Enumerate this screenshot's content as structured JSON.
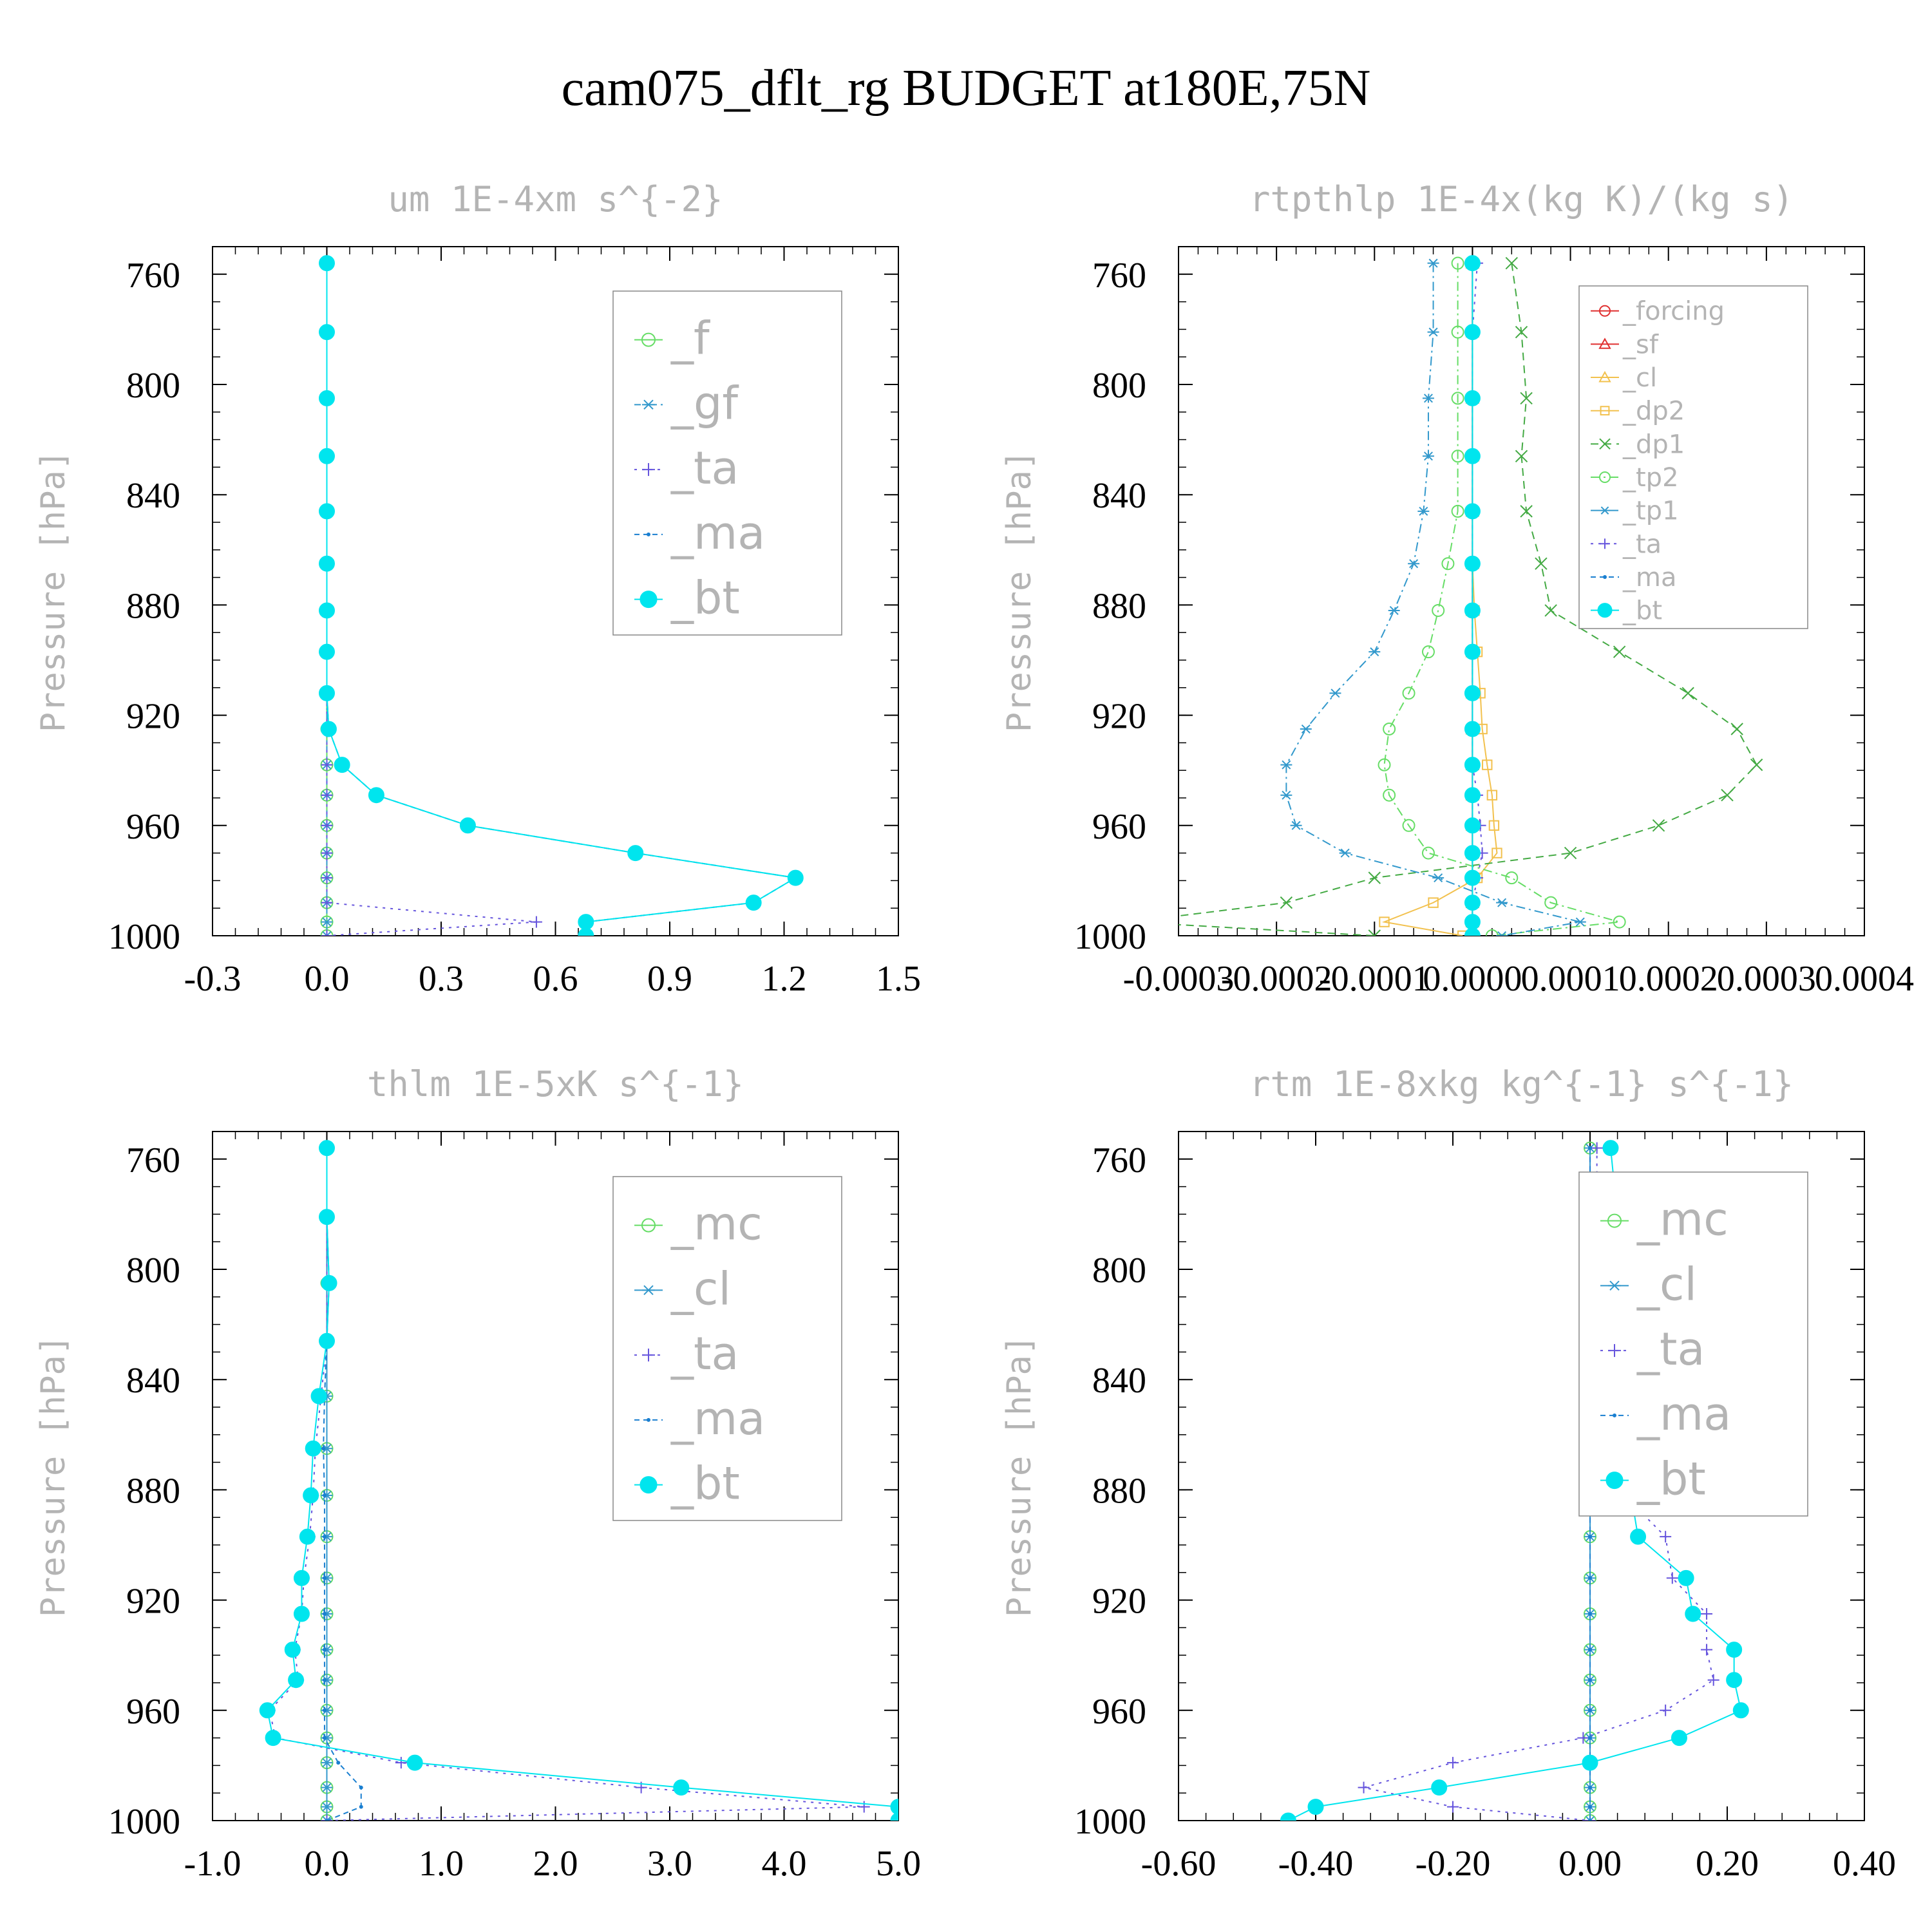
{
  "title": "cam075_dflt_rg  BUDGET at180E,75N",
  "colors": {
    "axis": "#000000",
    "grey_text": "#b4b4b4",
    "_f": "#66dd66",
    "_gf": "#3399cc",
    "_ta": "#6655dd",
    "_ma": "#1a7fd0",
    "_bt": "#00e5ee",
    "_forcing": "#e03030",
    "_sf": "#e03030",
    "_cl": "#f2c14e",
    "_dp2": "#f2c14e",
    "_dp1": "#44aa44",
    "_tp2": "#66dd66",
    "_tp1": "#3399cc",
    "_mc": "#66dd66",
    "_cl_blue": "#3399cc"
  },
  "chart_data": [
    {
      "type": "line",
      "title": "um  1E-4xm s^{-2}",
      "ylabel": "Pressure [hPa]",
      "xlabel": "",
      "xlim": [
        -0.3,
        1.5
      ],
      "ylim": [
        1000,
        750
      ],
      "xticks": [
        "-0.3",
        "0.0",
        "0.3",
        "0.6",
        "0.9",
        "1.2",
        "1.5"
      ],
      "yticks": [
        "760",
        "800",
        "840",
        "880",
        "920",
        "960",
        "1000"
      ],
      "legend": "top-right",
      "y": [
        756,
        781,
        805,
        826,
        846,
        865,
        882,
        897,
        912,
        925,
        938,
        949,
        960,
        970,
        979,
        988,
        995,
        1000
      ],
      "series": [
        {
          "name": "_f",
          "values": [
            0,
            0,
            0,
            0,
            0,
            0,
            0,
            0,
            0,
            0,
            0,
            0,
            0,
            0,
            0,
            0,
            0,
            0
          ]
        },
        {
          "name": "_gf",
          "values": [
            0,
            0,
            0,
            0,
            0,
            0,
            0,
            0,
            0,
            0,
            0,
            0,
            0,
            0,
            0,
            0,
            0,
            0
          ]
        },
        {
          "name": "_ta",
          "values": [
            0,
            0,
            0,
            0,
            0,
            0,
            0,
            0,
            0,
            0,
            0,
            0,
            0,
            0,
            0,
            0,
            0.55,
            0
          ]
        },
        {
          "name": "_ma",
          "values": [
            0,
            0,
            0,
            0,
            0,
            0,
            0,
            0,
            0,
            0.005,
            0.04,
            0.13,
            0.37,
            0.81,
            1.23,
            1.12,
            0.68,
            0.68
          ]
        },
        {
          "name": "_bt",
          "values": [
            0,
            0,
            0,
            0,
            0,
            0,
            0,
            0,
            0,
            0.005,
            0.04,
            0.13,
            0.37,
            0.81,
            1.23,
            1.12,
            0.68,
            0.68
          ]
        }
      ]
    },
    {
      "type": "line",
      "title": "rtpthlp  1E-4x(kg K)/(kg s)",
      "ylabel": "Pressure [hPa]",
      "xlabel": "",
      "xlim": [
        -0.0003,
        0.0004
      ],
      "ylim": [
        1000,
        750
      ],
      "xticks": [
        "-0.0003",
        "-0.0002",
        "-0.0001",
        "0.0000",
        "0.0001",
        "0.0002",
        "0.0003",
        "0.0004"
      ],
      "yticks": [
        "760",
        "800",
        "840",
        "880",
        "920",
        "960",
        "1000"
      ],
      "legend": "top-right",
      "y": [
        756,
        781,
        805,
        826,
        846,
        865,
        882,
        897,
        912,
        925,
        938,
        949,
        960,
        970,
        979,
        988,
        995,
        1000
      ],
      "series": [
        {
          "name": "_forcing",
          "values": [
            0,
            0,
            0,
            0,
            0,
            0,
            0,
            0,
            0,
            0,
            0,
            0,
            0,
            0,
            0,
            0,
            0,
            0
          ]
        },
        {
          "name": "_sf",
          "values": [
            0,
            0,
            0,
            0,
            0,
            0,
            0,
            0,
            0,
            0,
            0,
            0,
            0,
            0,
            0,
            0,
            0,
            0
          ]
        },
        {
          "name": "_cl",
          "values": [
            0,
            0,
            0,
            0,
            0,
            0,
            0,
            0,
            0,
            0,
            0,
            0,
            0,
            0,
            0,
            0,
            0,
            0
          ]
        },
        {
          "name": "_dp2",
          "values": [
            0,
            0,
            0,
            0,
            0,
            0,
            2e-06,
            5e-06,
            8e-06,
            1e-05,
            1.5e-05,
            2e-05,
            2.2e-05,
            2.5e-05,
            5e-06,
            -4e-05,
            -9e-05,
            -1e-05
          ]
        },
        {
          "name": "_dp1",
          "values": [
            4e-05,
            5e-05,
            5.5e-05,
            5e-05,
            5.5e-05,
            7e-05,
            8e-05,
            0.00015,
            0.00022,
            0.00027,
            0.00029,
            0.00026,
            0.00019,
            0.0001,
            -0.0001,
            -0.00019,
            -0.00035,
            -0.0001
          ]
        },
        {
          "name": "_tp2",
          "values": [
            -1.5e-05,
            -1.5e-05,
            -1.5e-05,
            -1.5e-05,
            -1.5e-05,
            -2.5e-05,
            -3.5e-05,
            -4.5e-05,
            -6.5e-05,
            -8.5e-05,
            -9e-05,
            -8.5e-05,
            -6.5e-05,
            -4.5e-05,
            4e-05,
            8e-05,
            0.00015,
            2e-05
          ]
        },
        {
          "name": "_tp1",
          "values": [
            -4e-05,
            -4e-05,
            -4.5e-05,
            -4.5e-05,
            -5e-05,
            -6e-05,
            -8e-05,
            -0.0001,
            -0.00014,
            -0.00017,
            -0.00019,
            -0.00019,
            -0.00018,
            -0.00013,
            -3.5e-05,
            3e-05,
            0.00011,
            3e-05
          ]
        },
        {
          "name": "_ta",
          "values": [
            5e-06,
            0,
            0,
            0,
            0,
            0,
            0,
            0,
            0,
            0,
            0,
            5e-06,
            8e-06,
            1e-05,
            5e-06,
            0,
            0,
            0
          ]
        },
        {
          "name": "_ma",
          "values": [
            0,
            0,
            0,
            0,
            0,
            0,
            0,
            0,
            0,
            0,
            0,
            0,
            0,
            0,
            0,
            0,
            0,
            0
          ]
        },
        {
          "name": "_bt",
          "values": [
            0,
            0,
            0,
            0,
            0,
            0,
            0,
            0,
            0,
            0,
            0,
            0,
            0,
            0,
            0,
            0,
            0,
            0
          ]
        }
      ]
    },
    {
      "type": "line",
      "title": "thlm  1E-5xK s^{-1}",
      "ylabel": "Pressure [hPa]",
      "xlabel": "",
      "xlim": [
        -1.0,
        5.0
      ],
      "ylim": [
        1000,
        750
      ],
      "xticks": [
        "-1.0",
        "0.0",
        "1.0",
        "2.0",
        "3.0",
        "4.0",
        "5.0"
      ],
      "yticks": [
        "760",
        "800",
        "840",
        "880",
        "920",
        "960",
        "1000"
      ],
      "legend": "top-right",
      "y": [
        756,
        781,
        805,
        826,
        846,
        865,
        882,
        897,
        912,
        925,
        938,
        949,
        960,
        970,
        979,
        988,
        995,
        1000
      ],
      "series": [
        {
          "name": "_mc",
          "values": [
            0,
            0,
            0,
            0,
            0,
            0,
            0,
            0,
            0,
            0,
            0,
            0,
            0,
            0,
            0,
            0,
            0,
            0
          ]
        },
        {
          "name": "_cl",
          "values": [
            0,
            0,
            0,
            0,
            0,
            0,
            0,
            0,
            0,
            0,
            0,
            0,
            0,
            0,
            0,
            0,
            0,
            0
          ]
        },
        {
          "name": "_ta",
          "values": [
            0,
            0,
            0,
            0,
            -0.05,
            -0.1,
            -0.12,
            -0.15,
            -0.2,
            -0.22,
            -0.28,
            -0.25,
            -0.5,
            -0.45,
            0.65,
            2.75,
            4.7,
            0
          ]
        },
        {
          "name": "_ma",
          "values": [
            0,
            0,
            0.02,
            0,
            -0.02,
            -0.03,
            -0.02,
            -0.02,
            -0.02,
            -0.02,
            -0.02,
            -0.02,
            -0.02,
            -0.02,
            0.1,
            0.3,
            0.3,
            0
          ]
        },
        {
          "name": "_bt",
          "values": [
            0,
            0,
            0.02,
            0,
            -0.07,
            -0.12,
            -0.14,
            -0.17,
            -0.22,
            -0.22,
            -0.3,
            -0.27,
            -0.52,
            -0.47,
            0.77,
            3.1,
            5.0,
            5.0
          ]
        }
      ]
    },
    {
      "type": "line",
      "title": "rtm  1E-8xkg kg^{-1} s^{-1}",
      "ylabel": "Pressure [hPa]",
      "xlabel": "",
      "xlim": [
        -0.6,
        0.4
      ],
      "ylim": [
        1000,
        750
      ],
      "xticks": [
        "-0.60",
        "-0.40",
        "-0.20",
        "0.00",
        "0.20",
        "0.40"
      ],
      "yticks": [
        "760",
        "800",
        "840",
        "880",
        "920",
        "960",
        "1000"
      ],
      "legend": "top-right",
      "y": [
        756,
        781,
        805,
        826,
        846,
        865,
        882,
        897,
        912,
        925,
        938,
        949,
        960,
        970,
        979,
        988,
        995,
        1000
      ],
      "series": [
        {
          "name": "_mc",
          "values": [
            0,
            0,
            0,
            0,
            0,
            0,
            0,
            0,
            0,
            0,
            0,
            0,
            0,
            0,
            0,
            0,
            0,
            0
          ]
        },
        {
          "name": "_cl",
          "values": [
            0,
            0,
            0,
            0,
            0,
            0,
            0,
            0,
            0,
            0,
            0,
            0,
            0,
            0,
            0,
            0,
            0,
            0
          ]
        },
        {
          "name": "_ta",
          "values": [
            0.01,
            0.01,
            0.0,
            0.0,
            0.01,
            0.04,
            0.05,
            0.11,
            0.12,
            0.17,
            0.17,
            0.18,
            0.11,
            -0.01,
            -0.2,
            -0.33,
            -0.2,
            0.0
          ]
        },
        {
          "name": "_ma",
          "values": [
            0.0,
            0.0,
            0.0,
            0.0,
            0.0,
            0.0,
            0.0,
            0.0,
            0.0,
            0.0,
            0.0,
            0.0,
            0.0,
            0.0,
            0.0,
            0.0,
            0.0,
            0.0
          ]
        },
        {
          "name": "_bt",
          "values": [
            0.03,
            0.04,
            0.01,
            0.0,
            0.02,
            0.05,
            0.06,
            0.07,
            0.14,
            0.15,
            0.21,
            0.21,
            0.22,
            0.13,
            0.0,
            -0.22,
            -0.4,
            -0.44
          ]
        }
      ]
    }
  ]
}
